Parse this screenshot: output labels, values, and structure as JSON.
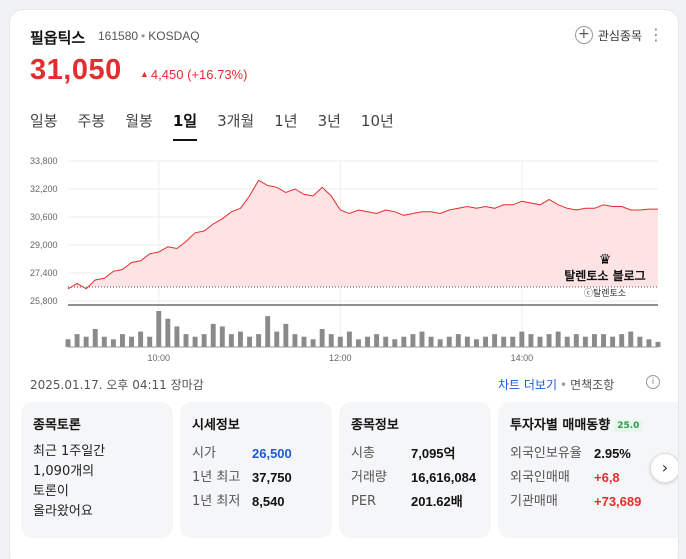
{
  "stock": {
    "name": "필옵틱스",
    "code": "161580",
    "market": "KOSDAQ",
    "price": "31,050",
    "change": "4,450",
    "change_pct": "(+16.73%)",
    "favorite_label": "관심종목"
  },
  "tabs": [
    {
      "label": "일봉",
      "active": false
    },
    {
      "label": "주봉",
      "active": false
    },
    {
      "label": "월봉",
      "active": false
    },
    {
      "label": "1일",
      "active": true
    },
    {
      "label": "3개월",
      "active": false
    },
    {
      "label": "1년",
      "active": false
    },
    {
      "label": "3년",
      "active": false
    },
    {
      "label": "10년",
      "active": false
    }
  ],
  "chart_data": {
    "type": "area",
    "x_ticks": [
      "10:00",
      "12:00",
      "14:00"
    ],
    "y_ticks": [
      "33,800",
      "32,200",
      "30,600",
      "29,000",
      "27,400",
      "25,800"
    ],
    "ylim": [
      25800,
      33800
    ],
    "prev_close": 26600,
    "x": [
      "09:00",
      "09:06",
      "09:12",
      "09:18",
      "09:24",
      "09:30",
      "09:36",
      "09:42",
      "09:48",
      "09:54",
      "10:00",
      "10:06",
      "10:12",
      "10:18",
      "10:24",
      "10:30",
      "10:36",
      "10:42",
      "10:48",
      "10:54",
      "11:00",
      "11:06",
      "11:12",
      "11:18",
      "11:24",
      "11:30",
      "11:36",
      "11:42",
      "11:48",
      "11:54",
      "12:00",
      "12:06",
      "12:12",
      "12:18",
      "12:24",
      "12:30",
      "12:36",
      "12:42",
      "12:48",
      "12:54",
      "13:00",
      "13:06",
      "13:12",
      "13:18",
      "13:24",
      "13:30",
      "13:36",
      "13:42",
      "13:48",
      "13:54",
      "14:00",
      "14:06",
      "14:12",
      "14:18",
      "14:24",
      "14:30",
      "14:36",
      "14:42",
      "14:48",
      "14:54",
      "15:00",
      "15:06",
      "15:12",
      "15:18",
      "15:24",
      "15:30"
    ],
    "values": [
      26500,
      26800,
      26500,
      27000,
      27100,
      27500,
      27600,
      28000,
      28100,
      28500,
      28600,
      28900,
      28800,
      29200,
      29700,
      29800,
      30200,
      30500,
      30900,
      31100,
      31800,
      32700,
      32400,
      32300,
      32000,
      32200,
      31900,
      31800,
      32300,
      31800,
      31000,
      30800,
      31000,
      30900,
      30800,
      31000,
      30900,
      30700,
      30800,
      30900,
      30900,
      30800,
      31000,
      31100,
      31200,
      31100,
      31200,
      31100,
      31300,
      31300,
      31500,
      31400,
      31300,
      31600,
      31300,
      31100,
      31000,
      31100,
      31100,
      31300,
      31200,
      31200,
      31000,
      31000,
      31050,
      31050
    ],
    "volume": [
      3,
      5,
      4,
      7,
      4,
      3,
      5,
      4,
      6,
      4,
      14,
      11,
      8,
      5,
      4,
      5,
      9,
      8,
      5,
      6,
      4,
      5,
      12,
      6,
      9,
      5,
      4,
      3,
      7,
      5,
      4,
      6,
      3,
      4,
      5,
      4,
      3,
      4,
      5,
      6,
      4,
      3,
      4,
      5,
      4,
      3,
      4,
      5,
      4,
      4,
      6,
      5,
      4,
      5,
      6,
      4,
      5,
      4,
      5,
      5,
      4,
      5,
      6,
      4,
      3,
      2
    ],
    "grid": true
  },
  "watermark": {
    "blog": "탈렌토소 블로그",
    "copyright": "ⓒ탈렌토소"
  },
  "dateline": "2025.01.17. 오후 04:11 장마감",
  "more_chart": "차트 더보기",
  "condition": "면책조항",
  "panels": {
    "discussion": {
      "title": "종목토론",
      "lines": [
        "최근 1주일간",
        "1,090개의",
        "토론이",
        "올라왔어요"
      ]
    },
    "market": {
      "title": "시세정보",
      "rows": [
        {
          "k": "시가",
          "v": "26,500"
        },
        {
          "k": "1년 최고",
          "v": "37,750"
        },
        {
          "k": "1년 최저",
          "v": "8,540"
        }
      ]
    },
    "info": {
      "title": "종목정보",
      "rows": [
        {
          "k": "시총",
          "v": "7,095억"
        },
        {
          "k": "거래량",
          "v": "16,616,084"
        },
        {
          "k": "PER",
          "v": "201.62배"
        }
      ]
    },
    "investor": {
      "title": "투자자별 매매동향",
      "badge": "25.0",
      "rows": [
        {
          "k": "외국인보유율",
          "v": "2.95%"
        },
        {
          "k": "외국인매매",
          "v": "+6,8"
        },
        {
          "k": "기관매매",
          "v": "+73,689"
        }
      ]
    }
  },
  "colors": {
    "up": "#e52d2d",
    "link": "#1a5ad7",
    "area_fill": "#fde3e3"
  }
}
